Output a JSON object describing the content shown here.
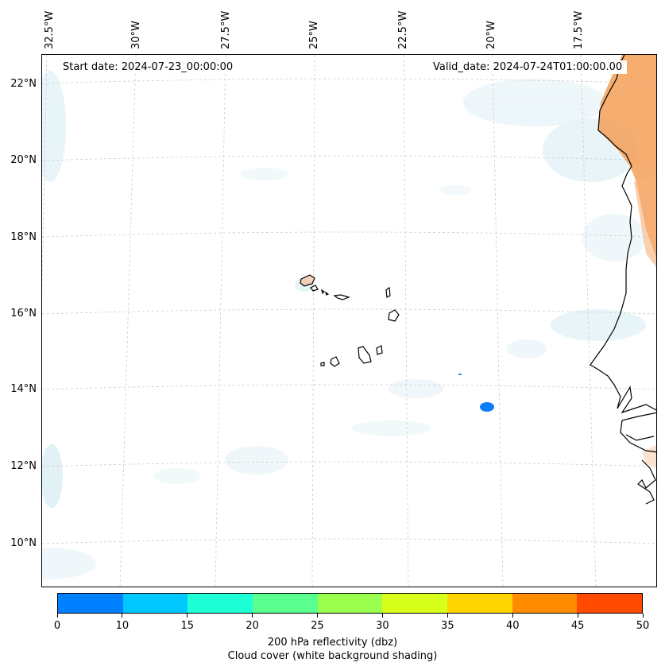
{
  "map": {
    "start_date": "Start date: 2024-07-23_00:00:00",
    "valid_date": "Valid_date: 2024-07-24T01:00:00.00",
    "lon_labels": [
      "32.5°W",
      "30°W",
      "27.5°W",
      "25°W",
      "22.5°W",
      "20°W",
      "17.5°W"
    ],
    "lat_labels": [
      "22°N",
      "20°N",
      "18°N",
      "16°N",
      "14°N",
      "12°N",
      "10°N"
    ],
    "colors": {
      "coastline": "#000000",
      "gridline": "#cccccc",
      "cloud_shade": "#d6ecf3",
      "land_warm": "#f4a460",
      "reflectivity_cell": "#0a7dfa"
    }
  },
  "colorbar": {
    "ticks": [
      "0",
      "10",
      "15",
      "20",
      "25",
      "30",
      "35",
      "40",
      "45",
      "50"
    ],
    "colors": [
      "#007ffe",
      "#00c8ff",
      "#1effd5",
      "#5bff8f",
      "#9bff4f",
      "#d7ff19",
      "#ffd500",
      "#ff8c00",
      "#ff4a00"
    ],
    "label_line1": "200 hPa reflectivity (dbz)",
    "label_line2": "Cloud cover (white background shading)"
  }
}
